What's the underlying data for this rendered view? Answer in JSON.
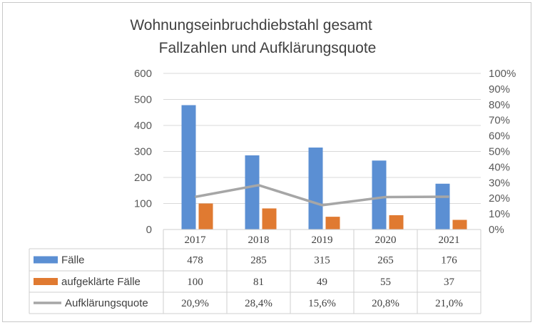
{
  "chart_data": {
    "type": "bar",
    "title": "Wohnungseinbruchdiebstahl gesamt",
    "subtitle": "Fallzahlen und Aufklärungsquote",
    "categories": [
      "2017",
      "2018",
      "2019",
      "2020",
      "2021"
    ],
    "series": [
      {
        "name": "Fälle",
        "type": "bar",
        "axis": "left",
        "color": "#5b8fd3",
        "values": [
          478,
          285,
          315,
          265,
          176
        ]
      },
      {
        "name": "aufgeklärte Fälle",
        "type": "bar",
        "axis": "left",
        "color": "#e07a31",
        "values": [
          100,
          81,
          49,
          55,
          37
        ]
      },
      {
        "name": "Aufklärungsquote",
        "type": "line",
        "axis": "right",
        "color": "#a6a6a6",
        "values": [
          0.209,
          0.284,
          0.156,
          0.208,
          0.21
        ]
      }
    ],
    "table_values": [
      [
        "478",
        "285",
        "315",
        "265",
        "176"
      ],
      [
        "100",
        "81",
        "49",
        "55",
        "37"
      ],
      [
        "20,9%",
        "28,4%",
        "15,6%",
        "20,8%",
        "21,0%"
      ]
    ],
    "y_left": {
      "min": 0,
      "max": 600,
      "ticks": [
        "0",
        "100",
        "200",
        "300",
        "400",
        "500",
        "600"
      ]
    },
    "y_right": {
      "min": 0,
      "max": 1,
      "ticks": [
        "0%",
        "10%",
        "20%",
        "30%",
        "40%",
        "50%",
        "60%",
        "70%",
        "80%",
        "90%",
        "100%"
      ]
    },
    "grid": true,
    "legend": "data-table"
  }
}
